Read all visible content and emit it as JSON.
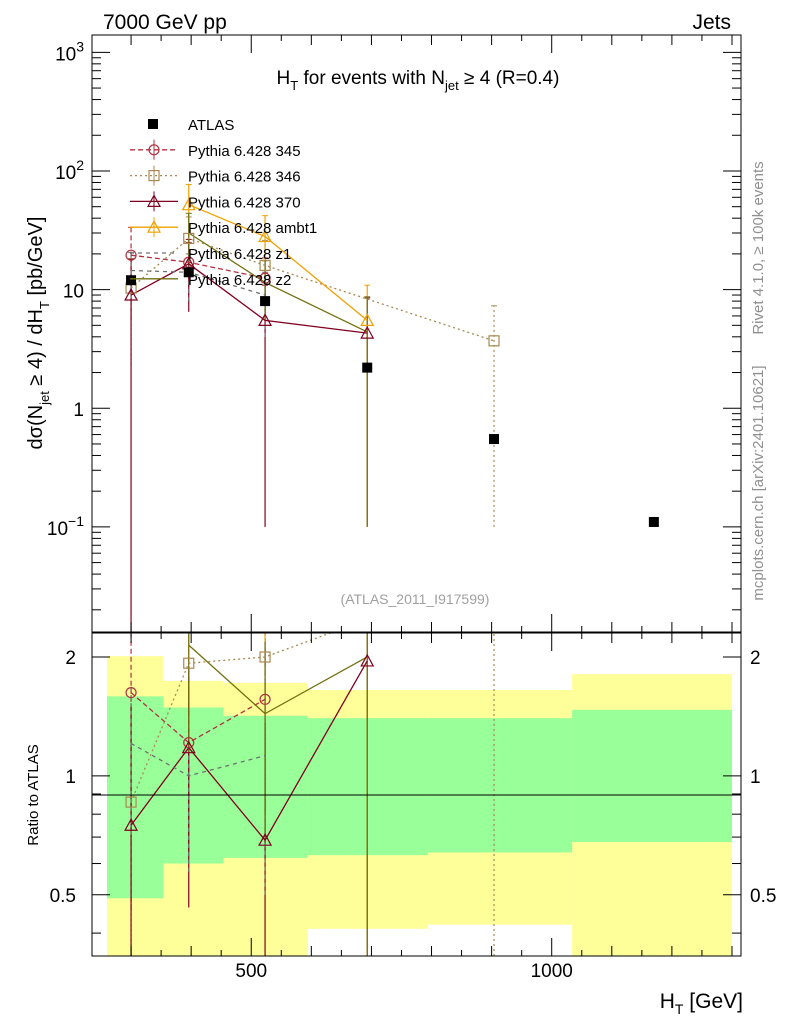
{
  "header": {
    "left": "7000 GeV pp",
    "right": "Jets"
  },
  "side_labels": {
    "rivet": "Rivet 4.1.0, ≥ 100k events",
    "mcplots": "mcplots.cern.ch [arXiv:2401.10621]"
  },
  "chart_data": {
    "type": "scatter",
    "title": "H_T for events with N_jet ≥ 4 (R=0.4)",
    "watermark": "(ATLAS_2011_I917599)",
    "xlabel": "H_T [GeV]",
    "ylabel": "dσ(N_jet ≥ 4) / dH_T [pb/GeV]",
    "ratio_ylabel": "Ratio to ATLAS",
    "xlim": [
      235,
      1315
    ],
    "ylim": [
      0.013,
      1400
    ],
    "yscale": "log",
    "ratio_ylim": [
      0.35,
      2.3
    ],
    "ratio_yscale": "log",
    "x_ticks": [
      500,
      1000
    ],
    "y_ticks": [
      {
        "value": 1000,
        "base": "10",
        "exp": "3"
      },
      {
        "value": 100,
        "base": "10",
        "exp": "2"
      },
      {
        "value": 10,
        "base": "10",
        "exp": ""
      },
      {
        "value": 1,
        "base": "1",
        "exp": ""
      },
      {
        "value": 0.1,
        "base": "10",
        "exp": "−1"
      }
    ],
    "ratio_ticks": [
      {
        "value": 0.5,
        "label": "0.5"
      },
      {
        "value": 1,
        "label": "1"
      },
      {
        "value": 2,
        "label": "2"
      }
    ],
    "data": {
      "name": "ATLAS",
      "x": [
        300,
        396,
        523,
        693,
        904,
        1170
      ],
      "y": [
        12.0,
        14.0,
        8.0,
        2.2,
        0.55,
        0.11
      ]
    },
    "bands": [
      {
        "xlow": 260,
        "xhigh": 354,
        "inner": [
          0.49,
          1.59
        ],
        "outer": [
          0.33,
          2.01
        ]
      },
      {
        "xlow": 354,
        "xhigh": 454,
        "inner": [
          0.6,
          1.49
        ],
        "outer": [
          0.33,
          1.74
        ]
      },
      {
        "xlow": 454,
        "xhigh": 594,
        "inner": [
          0.62,
          1.42
        ],
        "outer": [
          0.33,
          1.72
        ]
      },
      {
        "xlow": 594,
        "xhigh": 794,
        "inner": [
          0.63,
          1.4
        ],
        "outer": [
          0.41,
          1.65
        ]
      },
      {
        "xlow": 794,
        "xhigh": 1034,
        "inner": [
          0.64,
          1.4
        ],
        "outer": [
          0.42,
          1.65
        ]
      },
      {
        "xlow": 1034,
        "xhigh": 1300,
        "inner": [
          0.68,
          1.47
        ],
        "outer": [
          0.33,
          1.81
        ]
      }
    ],
    "series": [
      {
        "name": "Pythia 6.428 345",
        "color": "#b03040",
        "dash": "5,3",
        "marker": "circle",
        "x": [
          300,
          396,
          523
        ],
        "y": [
          19.5,
          17.0,
          12.5
        ],
        "err": [
          14,
          8,
          6
        ]
      },
      {
        "name": "Pythia 6.428 346",
        "color": "#a88850",
        "dash": "2,3",
        "marker": "square",
        "x": [
          300,
          396,
          523,
          904
        ],
        "y": [
          10.3,
          27.0,
          16.0,
          3.7
        ],
        "err": [
          8,
          14,
          10,
          3.6
        ]
      },
      {
        "name": "Pythia 6.428 370",
        "color": "#800020",
        "dash": "",
        "marker": "triangle",
        "x": [
          300,
          396,
          523,
          693
        ],
        "y": [
          9.0,
          16.5,
          5.5,
          4.3
        ],
        "err": [
          9,
          10,
          5.4,
          4.2
        ]
      },
      {
        "name": "Pythia 6.428 ambt1",
        "color": "#f0a000",
        "dash": "",
        "marker": "triangle",
        "x": [
          396,
          523,
          693
        ],
        "y": [
          52.0,
          28.0,
          5.5
        ],
        "err": [
          25,
          14,
          5.4
        ]
      },
      {
        "name": "Pythia 6.428 z1",
        "color": "#707070",
        "dash": "4,4",
        "marker": "none",
        "x": [
          300,
          396,
          523
        ],
        "y": [
          14.5,
          14.0,
          9.0
        ],
        "err": [
          6,
          6,
          5
        ]
      },
      {
        "name": "Pythia 6.428 z2",
        "color": "#707010",
        "dash": "",
        "marker": "none",
        "x": [
          396,
          523,
          693
        ],
        "y": [
          30.0,
          11.5,
          4.4
        ],
        "err": [
          14,
          6,
          4.3
        ]
      }
    ]
  }
}
